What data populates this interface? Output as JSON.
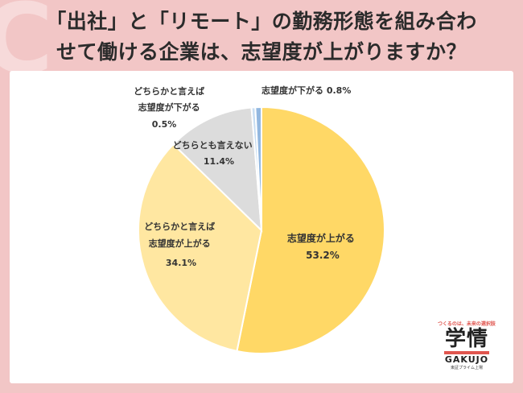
{
  "title_line1": "「出社」と「リモート」の勤務形態を組み合わ",
  "title_line2": "せて働ける企業は、志望度が上がりますか？",
  "chart_data": {
    "type": "pie",
    "title": "「出社」と「リモート」の勤務形態を組み合わせて働ける企業は、志望度が上がりますか？",
    "slices": [
      {
        "label": "志望度が上がる",
        "value": 53.2,
        "display": "53.2%",
        "color": "#ffd866"
      },
      {
        "label": "どちらかと言えば 志望度が上がる",
        "value": 34.1,
        "display": "34.1%",
        "color": "#ffe7a1"
      },
      {
        "label": "どちらとも言えない",
        "value": 11.4,
        "display": "11.4%",
        "color": "#dcdcdc"
      },
      {
        "label": "どちらかと言えば 志望度が下がる",
        "value": 0.5,
        "display": "0.5%",
        "color": "#c9def2"
      },
      {
        "label": "志望度が下がる",
        "value": 0.8,
        "display": "0.8%",
        "color": "#93b8e0"
      }
    ]
  },
  "labels": {
    "s0": [
      "志望度が上がる",
      "53.2%"
    ],
    "s1": [
      "どちらかと言えば",
      "志望度が上がる",
      "34.1%"
    ],
    "s2": [
      "どちらとも言えない",
      "11.4%"
    ],
    "s3": [
      "どちらかと言えば",
      "志望度が下がる",
      "0.5%"
    ],
    "s4": "志望度が下がる 0.8%"
  },
  "brand": {
    "tagline": "つくるのは、未来の選択肢",
    "kanji": "学情",
    "latin": "GAKUJO",
    "sub": "東証プライム上場"
  }
}
